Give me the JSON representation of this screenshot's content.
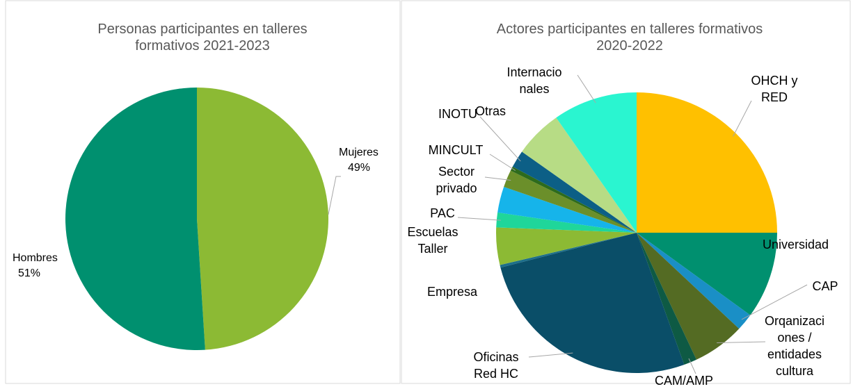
{
  "chart_data": [
    {
      "type": "pie",
      "title": "Personas participantes en talleres\nformativos 2021-2023",
      "categories": [
        "Mujeres",
        "Hombres"
      ],
      "values": [
        49,
        51
      ],
      "value_labels": [
        "49%",
        "51%"
      ],
      "colors": [
        "#8cba34",
        "#00906f"
      ]
    },
    {
      "type": "pie",
      "title": "Actores participantes en talleres formativos\n2020-2022",
      "categories": [
        "OHCH y\nRED",
        "Universidad",
        "CAP",
        "Orqanizaci\nones /\nentidades\ncultura",
        "CAM/AMP",
        "Oficinas\nRed HC",
        "Empresa",
        "Escuelas\nTaller",
        "PAC",
        null,
        "Sector\nprivado",
        "MINCULT",
        "INOTU",
        "Otras",
        "Internacio\nnales"
      ],
      "values": [
        25,
        10,
        2,
        6,
        1.5,
        26.5,
        0.3,
        4.3,
        1.7,
        3,
        2,
        0.5,
        2,
        5.5,
        9.7
      ],
      "colors": [
        "#ffc000",
        "#00906f",
        "#1a8fc6",
        "#546b23",
        "#0e5a44",
        "#0a4e68",
        "#1d6f8a",
        "#8cba34",
        "#1fd69a",
        "#16b4ea",
        "#6b8f2a",
        "#2d6b1c",
        "#0c5f86",
        "#b7dc85",
        "#2af5d0"
      ]
    }
  ]
}
